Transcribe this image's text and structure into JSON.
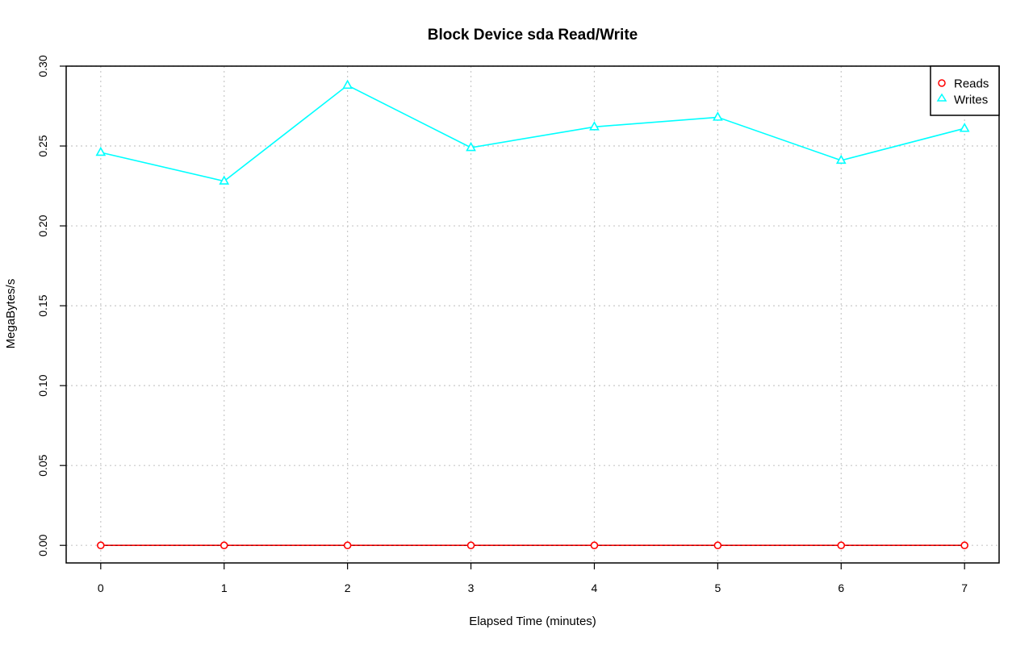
{
  "chart_data": {
    "type": "line",
    "title": "Block Device sda Read/Write",
    "xlabel": "Elapsed Time (minutes)",
    "ylabel": "MegaBytes/s",
    "x": [
      0,
      1,
      2,
      3,
      4,
      5,
      6,
      7
    ],
    "xticks": [
      "0",
      "1",
      "2",
      "3",
      "4",
      "5",
      "6",
      "7"
    ],
    "yticks": [
      "0.00",
      "0.05",
      "0.10",
      "0.15",
      "0.20",
      "0.25",
      "0.30"
    ],
    "xlim": [
      -0.28,
      7.28
    ],
    "ylim": [
      -0.011,
      0.3
    ],
    "grid": true,
    "legend_position": "top-right",
    "series": [
      {
        "name": "Reads",
        "color": "#ff0000",
        "marker": "circle",
        "values": [
          0.0,
          0.0,
          0.0,
          0.0,
          0.0,
          0.0,
          0.0,
          0.0
        ]
      },
      {
        "name": "Writes",
        "color": "#00ffff",
        "marker": "triangle",
        "values": [
          0.246,
          0.228,
          0.288,
          0.249,
          0.262,
          0.268,
          0.241,
          0.261
        ]
      }
    ]
  }
}
